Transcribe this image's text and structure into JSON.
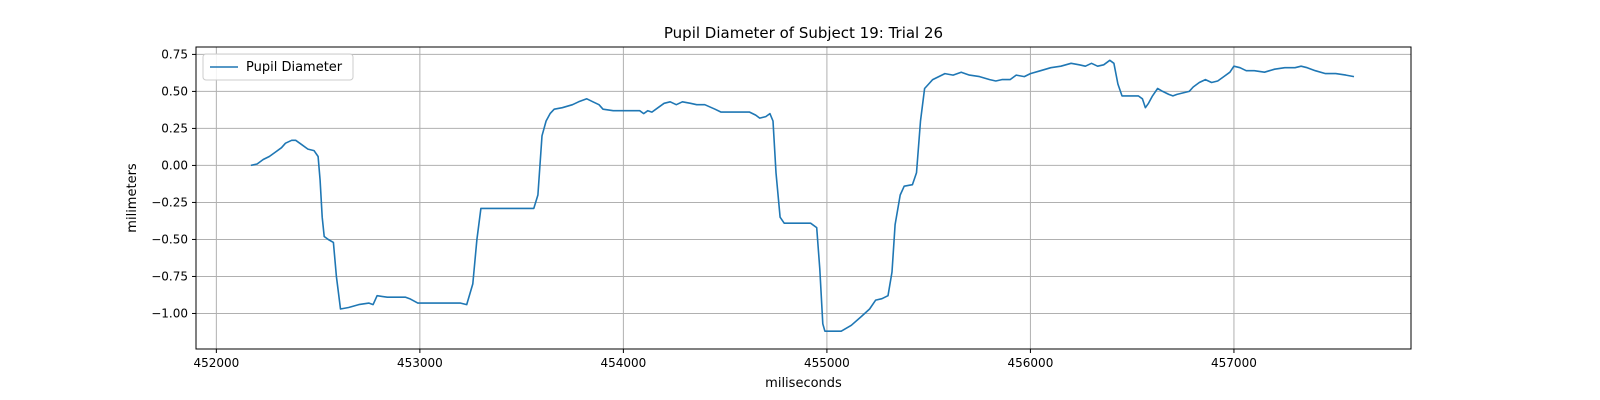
{
  "chart_data": {
    "type": "line",
    "title": "Pupil Diameter of Subject 19: Trial 26",
    "xlabel": "miliseconds",
    "ylabel": "milimeters",
    "xlim": [
      451900,
      457870
    ],
    "ylim": [
      -1.24,
      0.8
    ],
    "xticks": [
      452000,
      453000,
      454000,
      455000,
      456000,
      457000
    ],
    "xtick_labels": [
      "452000",
      "453000",
      "454000",
      "455000",
      "456000",
      "457000"
    ],
    "yticks": [
      -1.0,
      -0.75,
      -0.5,
      -0.25,
      0.0,
      0.25,
      0.5,
      0.75
    ],
    "ytick_labels": [
      "−1.00",
      "−0.75",
      "−0.50",
      "−0.25",
      "0.00",
      "0.25",
      "0.50",
      "0.75"
    ],
    "grid": true,
    "legend_position": "top-left",
    "series": [
      {
        "name": "Pupil Diameter",
        "color": "#1f77b4",
        "points": [
          [
            452170,
            0.0
          ],
          [
            452200,
            0.01
          ],
          [
            452230,
            0.04
          ],
          [
            452260,
            0.06
          ],
          [
            452290,
            0.09
          ],
          [
            452320,
            0.12
          ],
          [
            452340,
            0.15
          ],
          [
            452370,
            0.17
          ],
          [
            452390,
            0.17
          ],
          [
            452420,
            0.14
          ],
          [
            452450,
            0.11
          ],
          [
            452480,
            0.1
          ],
          [
            452500,
            0.06
          ],
          [
            452510,
            -0.1
          ],
          [
            452520,
            -0.35
          ],
          [
            452530,
            -0.48
          ],
          [
            452550,
            -0.5
          ],
          [
            452575,
            -0.52
          ],
          [
            452590,
            -0.75
          ],
          [
            452610,
            -0.97
          ],
          [
            452650,
            -0.96
          ],
          [
            452700,
            -0.94
          ],
          [
            452750,
            -0.93
          ],
          [
            452770,
            -0.94
          ],
          [
            452790,
            -0.88
          ],
          [
            452840,
            -0.89
          ],
          [
            452880,
            -0.89
          ],
          [
            452930,
            -0.89
          ],
          [
            452950,
            -0.9
          ],
          [
            452990,
            -0.93
          ],
          [
            453100,
            -0.93
          ],
          [
            453200,
            -0.93
          ],
          [
            453230,
            -0.94
          ],
          [
            453260,
            -0.8
          ],
          [
            453280,
            -0.5
          ],
          [
            453300,
            -0.29
          ],
          [
            453400,
            -0.29
          ],
          [
            453500,
            -0.29
          ],
          [
            453560,
            -0.29
          ],
          [
            453580,
            -0.2
          ],
          [
            453600,
            0.2
          ],
          [
            453620,
            0.3
          ],
          [
            453640,
            0.35
          ],
          [
            453660,
            0.38
          ],
          [
            453700,
            0.39
          ],
          [
            453750,
            0.41
          ],
          [
            453780,
            0.43
          ],
          [
            453820,
            0.45
          ],
          [
            453850,
            0.43
          ],
          [
            453880,
            0.41
          ],
          [
            453900,
            0.38
          ],
          [
            453950,
            0.37
          ],
          [
            454000,
            0.37
          ],
          [
            454080,
            0.37
          ],
          [
            454100,
            0.35
          ],
          [
            454120,
            0.37
          ],
          [
            454140,
            0.36
          ],
          [
            454170,
            0.39
          ],
          [
            454200,
            0.42
          ],
          [
            454230,
            0.43
          ],
          [
            454260,
            0.41
          ],
          [
            454290,
            0.43
          ],
          [
            454330,
            0.42
          ],
          [
            454360,
            0.41
          ],
          [
            454400,
            0.41
          ],
          [
            454450,
            0.38
          ],
          [
            454480,
            0.36
          ],
          [
            454550,
            0.36
          ],
          [
            454620,
            0.36
          ],
          [
            454650,
            0.34
          ],
          [
            454670,
            0.32
          ],
          [
            454700,
            0.33
          ],
          [
            454720,
            0.35
          ],
          [
            454735,
            0.3
          ],
          [
            454750,
            -0.05
          ],
          [
            454770,
            -0.35
          ],
          [
            454790,
            -0.39
          ],
          [
            454850,
            -0.39
          ],
          [
            454920,
            -0.39
          ],
          [
            454950,
            -0.42
          ],
          [
            454965,
            -0.7
          ],
          [
            454980,
            -1.07
          ],
          [
            454990,
            -1.12
          ],
          [
            455050,
            -1.12
          ],
          [
            455070,
            -1.12
          ],
          [
            455120,
            -1.08
          ],
          [
            455170,
            -1.02
          ],
          [
            455210,
            -0.97
          ],
          [
            455240,
            -0.91
          ],
          [
            455270,
            -0.9
          ],
          [
            455300,
            -0.88
          ],
          [
            455320,
            -0.72
          ],
          [
            455335,
            -0.4
          ],
          [
            455360,
            -0.2
          ],
          [
            455380,
            -0.14
          ],
          [
            455420,
            -0.13
          ],
          [
            455440,
            -0.05
          ],
          [
            455460,
            0.3
          ],
          [
            455480,
            0.52
          ],
          [
            455500,
            0.55
          ],
          [
            455520,
            0.58
          ],
          [
            455550,
            0.6
          ],
          [
            455580,
            0.62
          ],
          [
            455620,
            0.61
          ],
          [
            455660,
            0.63
          ],
          [
            455700,
            0.61
          ],
          [
            455750,
            0.6
          ],
          [
            455800,
            0.58
          ],
          [
            455830,
            0.57
          ],
          [
            455860,
            0.58
          ],
          [
            455900,
            0.58
          ],
          [
            455930,
            0.61
          ],
          [
            455970,
            0.6
          ],
          [
            456000,
            0.62
          ],
          [
            456050,
            0.64
          ],
          [
            456100,
            0.66
          ],
          [
            456150,
            0.67
          ],
          [
            456200,
            0.69
          ],
          [
            456240,
            0.68
          ],
          [
            456270,
            0.67
          ],
          [
            456300,
            0.69
          ],
          [
            456330,
            0.67
          ],
          [
            456360,
            0.68
          ],
          [
            456390,
            0.71
          ],
          [
            456410,
            0.69
          ],
          [
            456430,
            0.55
          ],
          [
            456450,
            0.47
          ],
          [
            456480,
            0.47
          ],
          [
            456530,
            0.47
          ],
          [
            456550,
            0.45
          ],
          [
            456565,
            0.39
          ],
          [
            456580,
            0.42
          ],
          [
            456600,
            0.47
          ],
          [
            456625,
            0.52
          ],
          [
            456650,
            0.5
          ],
          [
            456680,
            0.48
          ],
          [
            456700,
            0.47
          ],
          [
            456720,
            0.48
          ],
          [
            456750,
            0.49
          ],
          [
            456780,
            0.5
          ],
          [
            456800,
            0.53
          ],
          [
            456830,
            0.56
          ],
          [
            456860,
            0.58
          ],
          [
            456890,
            0.56
          ],
          [
            456920,
            0.57
          ],
          [
            456950,
            0.6
          ],
          [
            456980,
            0.63
          ],
          [
            457000,
            0.67
          ],
          [
            457030,
            0.66
          ],
          [
            457060,
            0.64
          ],
          [
            457100,
            0.64
          ],
          [
            457150,
            0.63
          ],
          [
            457200,
            0.65
          ],
          [
            457250,
            0.66
          ],
          [
            457300,
            0.66
          ],
          [
            457330,
            0.67
          ],
          [
            457360,
            0.66
          ],
          [
            457400,
            0.64
          ],
          [
            457450,
            0.62
          ],
          [
            457500,
            0.62
          ],
          [
            457550,
            0.61
          ],
          [
            457590,
            0.6
          ]
        ]
      }
    ]
  }
}
